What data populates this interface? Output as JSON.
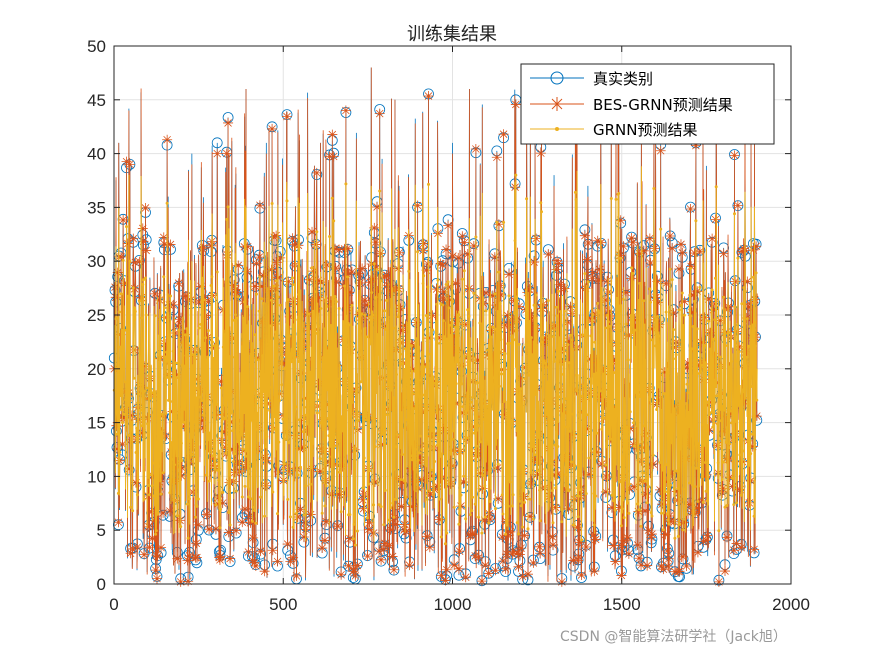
{
  "chart_data": {
    "type": "line",
    "title": "训练集结果",
    "xlim": [
      0,
      2000
    ],
    "ylim": [
      0,
      50
    ],
    "xticks": [
      0,
      500,
      1000,
      1500,
      2000
    ],
    "yticks": [
      0,
      5,
      10,
      15,
      20,
      25,
      30,
      35,
      40,
      45,
      50
    ],
    "grid": true,
    "legend_position": "top-right",
    "n_points": 1900,
    "colors": {
      "true": "#0072BD",
      "bes_grnn": "#D95319",
      "grnn": "#EDB120"
    },
    "series": [
      {
        "name": "真实类别",
        "marker": "circle",
        "color": "#0072BD"
      },
      {
        "name": "BES-GRNN预测结果",
        "marker": "star",
        "color": "#D95319"
      },
      {
        "name": "GRNN预测结果",
        "marker": "dot",
        "color": "#EDB120"
      }
    ],
    "sample_values": {
      "x": [
        1,
        14,
        25,
        47,
        95,
        160,
        230,
        305,
        390,
        450,
        520,
        610,
        700,
        760,
        830,
        900,
        1000,
        1050,
        1230,
        1300,
        1400,
        1500,
        1600,
        1700,
        1780,
        1900
      ],
      "true": [
        21,
        41,
        12,
        39,
        32,
        36,
        40,
        41,
        46,
        41,
        28,
        41,
        31,
        48,
        45,
        28,
        41,
        46,
        48,
        38,
        37,
        33,
        40,
        31,
        37,
        27
      ],
      "bes_grnn": [
        20,
        41,
        13,
        39,
        31,
        35,
        39,
        40,
        46,
        40,
        27,
        41,
        30,
        48,
        45,
        29,
        40,
        46,
        48,
        37,
        36,
        33,
        41,
        30,
        37,
        27
      ],
      "grnn": [
        18,
        35,
        15,
        30,
        25,
        27,
        30,
        29,
        35,
        31,
        24,
        29,
        26,
        37,
        33,
        26,
        30,
        34,
        36,
        30,
        28,
        26,
        31,
        27,
        29,
        20
      ]
    }
  },
  "watermark": "CSDN @智能算法研学社（Jack旭）"
}
